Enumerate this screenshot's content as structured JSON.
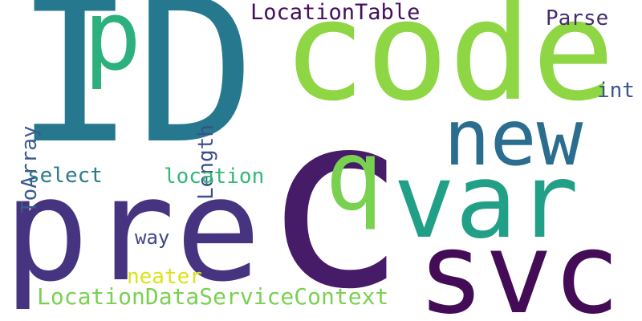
{
  "cloud": {
    "words": {
      "id": {
        "text": "ID",
        "color": "#26788e"
      },
      "code": {
        "text": "code",
        "color": "#8fd644"
      },
      "c": {
        "text": "c",
        "color": "#461b68"
      },
      "pre": {
        "text": "pre",
        "color": "#463480"
      },
      "svc": {
        "text": "svc",
        "color": "#440c57"
      },
      "var": {
        "text": "var",
        "color": "#21a087"
      },
      "q": {
        "text": "q",
        "color": "#79d150"
      },
      "new": {
        "text": "new",
        "color": "#2a6d8e"
      },
      "p": {
        "text": "p",
        "color": "#2cb17e"
      },
      "loctable": {
        "text": "LocationTable",
        "color": "#450f5a"
      },
      "parse": {
        "text": "Parse",
        "color": "#442e6f"
      },
      "int": {
        "text": "int",
        "color": "#39558c"
      },
      "toarray": {
        "text": "ToArray",
        "color": "#3a5a8c"
      },
      "length": {
        "text": "Length",
        "color": "#3b4f8a"
      },
      "select": {
        "text": "select",
        "color": "#2a7a8e"
      },
      "location": {
        "text": "location",
        "color": "#35b779"
      },
      "way": {
        "text": "way",
        "color": "#414487"
      },
      "neater": {
        "text": "neater",
        "color": "#dde318"
      },
      "ldsc": {
        "text": "LocationDataServiceContext",
        "color": "#7ad151"
      }
    }
  }
}
